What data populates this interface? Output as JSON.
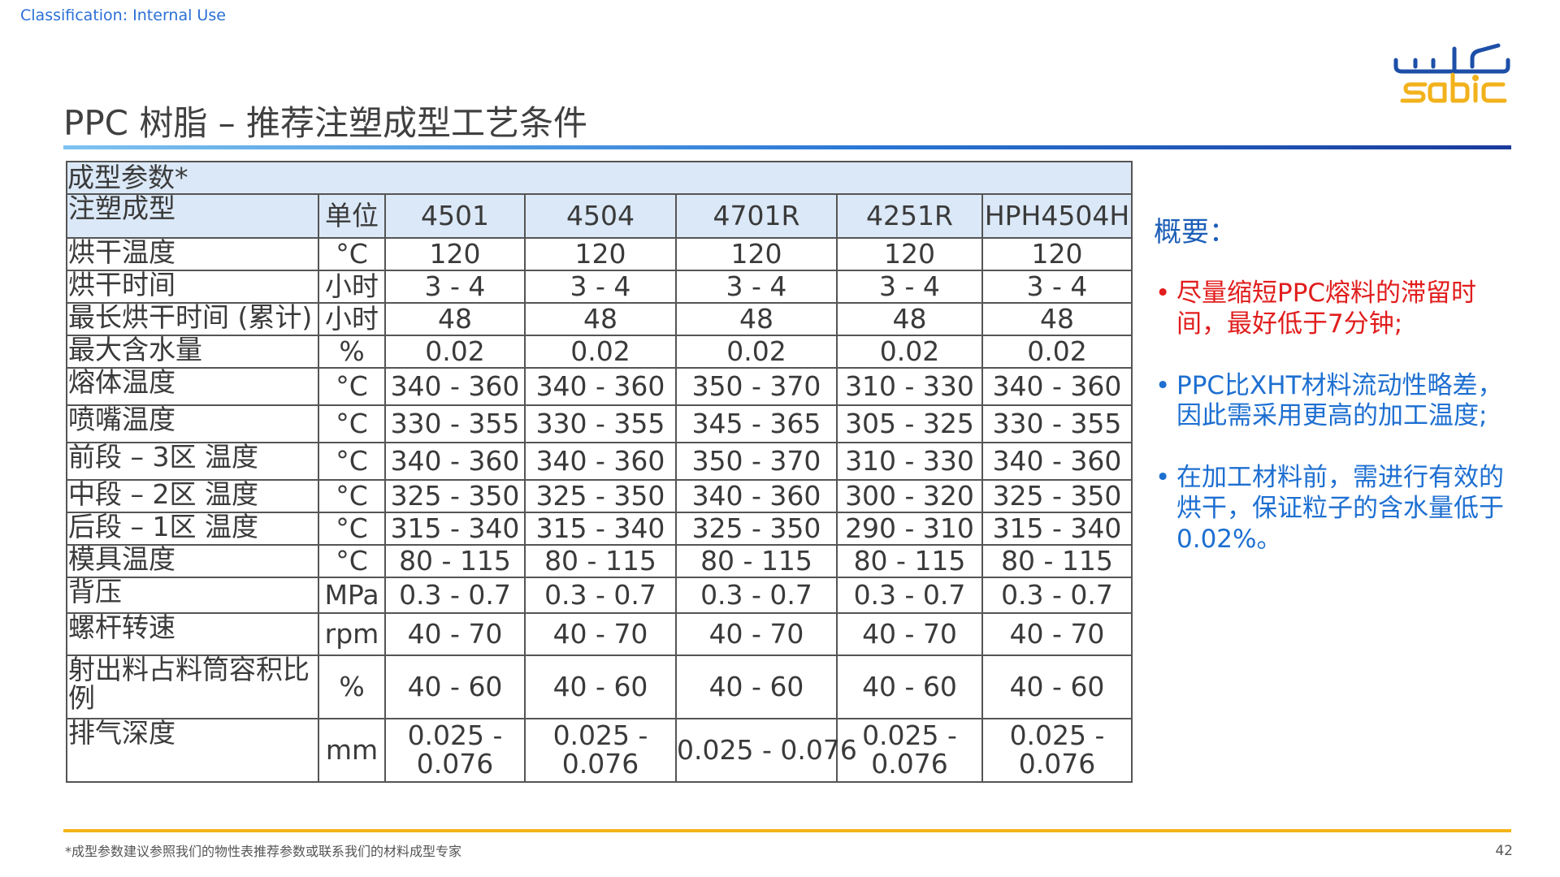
{
  "classification": "Classification: Internal Use",
  "logo": {
    "arabic": "سابك",
    "latin": "sabic"
  },
  "title": "PPC 树脂 – 推荐注塑成型工艺条件",
  "table": {
    "group_label": "成型参数*",
    "header": {
      "param": "注塑成型",
      "unit": "单位",
      "grades": [
        "4501",
        "4504",
        "4701R",
        "4251R",
        "HPH4504H"
      ]
    },
    "rows": [
      {
        "param": "烘干温度",
        "unit": "°C",
        "values": [
          "120",
          "120",
          "120",
          "120",
          "120"
        ]
      },
      {
        "param": "烘干时间",
        "unit": "小时",
        "values": [
          "3 - 4",
          "3 - 4",
          "3 - 4",
          "3 - 4",
          "3 - 4"
        ]
      },
      {
        "param": "最长烘干时间 (累计)",
        "unit": "小时",
        "values": [
          "48",
          "48",
          "48",
          "48",
          "48"
        ]
      },
      {
        "param": "最大含水量",
        "unit": "%",
        "values": [
          "0.02",
          "0.02",
          "0.02",
          "0.02",
          "0.02"
        ]
      },
      {
        "param": "熔体温度",
        "unit": "°C",
        "values": [
          "340 - 360",
          "340 - 360",
          "350 - 370",
          "310 - 330",
          "340 - 360"
        ]
      },
      {
        "param": "喷嘴温度",
        "unit": "°C",
        "values": [
          "330 - 355",
          "330 - 355",
          "345 - 365",
          "305 - 325",
          "330 - 355"
        ]
      },
      {
        "param": "前段 – 3区 温度",
        "unit": "°C",
        "values": [
          "340 - 360",
          "340 - 360",
          "350 - 370",
          "310 - 330",
          "340 - 360"
        ]
      },
      {
        "param": "中段 – 2区 温度",
        "unit": "°C",
        "values": [
          "325 - 350",
          "325 - 350",
          "340 - 360",
          "300 - 320",
          "325 - 350"
        ]
      },
      {
        "param": "后段 – 1区 温度",
        "unit": "°C",
        "values": [
          "315 - 340",
          "315 - 340",
          "325 - 350",
          "290 - 310",
          "315 - 340"
        ]
      },
      {
        "param": "模具温度",
        "unit": "°C",
        "values": [
          "80 - 115",
          "80 - 115",
          "80 - 115",
          "80 - 115",
          "80 - 115"
        ]
      },
      {
        "param": "背压",
        "unit": "MPa",
        "values": [
          "0.3 - 0.7",
          "0.3 - 0.7",
          "0.3 - 0.7",
          "0.3 - 0.7",
          "0.3 - 0.7"
        ]
      },
      {
        "param": "螺杆转速",
        "unit": "rpm",
        "values": [
          "40 - 70",
          "40 - 70",
          "40 - 70",
          "40 - 70",
          "40 - 70"
        ]
      },
      {
        "param": "射出料占料筒容积比例",
        "unit": "%",
        "values": [
          "40 - 60",
          "40 - 60",
          "40 - 60",
          "40 - 60",
          "40 - 60"
        ]
      },
      {
        "param": "排气深度",
        "unit": "mm",
        "values": [
          "0.025 - 0.076",
          "0.025 - 0.076",
          "0.025 - 0.076",
          "0.025 - 0.076",
          "0.025 - 0.076"
        ]
      }
    ]
  },
  "summary": {
    "title": "概要：",
    "bullets": [
      {
        "text": "尽量缩短PPC熔料的滞留时间，最好低于7分钟;",
        "color": "#e11d1d"
      },
      {
        "text": "PPC比XHT材料流动性略差，因此需采用更高的加工温度;",
        "color": "#1d6fd1"
      },
      {
        "text": "在加工材料前，需进行有效的烘干，保证粒子的含水量低于0.02%。",
        "color": "#1d6fd1"
      }
    ]
  },
  "footnote": "*成型参数建议参照我们的物性表推荐参数或联系我们的材料成型专家",
  "page_number": "42",
  "colors": {
    "accent_blue": "#2a78d6",
    "accent_yellow": "#f4b41a",
    "header_fill": "#dbe8f7"
  }
}
